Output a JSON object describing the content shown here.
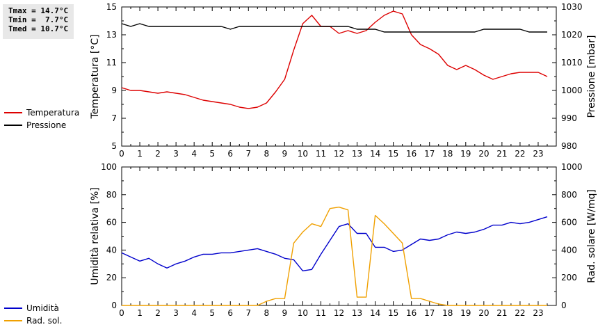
{
  "stats": [
    "Tmax = 14.7°C",
    "Tmin =  7.7°C",
    "Tmed = 10.7°C"
  ],
  "chart_data": [
    {
      "type": "line",
      "x": [
        0,
        0.5,
        1,
        1.5,
        2,
        2.5,
        3,
        3.5,
        4,
        4.5,
        5,
        5.5,
        6,
        6.5,
        7,
        7.5,
        8,
        8.5,
        9,
        9.5,
        10,
        10.5,
        11,
        11.5,
        12,
        12.5,
        13,
        13.5,
        14,
        14.5,
        15,
        15.5,
        16,
        16.5,
        17,
        17.5,
        18,
        18.5,
        19,
        19.5,
        20,
        20.5,
        21,
        21.5,
        22,
        22.5,
        23,
        23.5
      ],
      "xlim": [
        0,
        24
      ],
      "xticks": [
        "0",
        "1",
        "2",
        "3",
        "4",
        "5",
        "6",
        "7",
        "8",
        "9",
        "10",
        "11",
        "12",
        "13",
        "14",
        "15",
        "16",
        "17",
        "18",
        "19",
        "20",
        "21",
        "22",
        "23"
      ],
      "ylabel": "Temperatura [°C]",
      "ylim": [
        5,
        15
      ],
      "yticks": [
        "5",
        "7",
        "9",
        "11",
        "13",
        "15"
      ],
      "y2label": "Pressione [mbar]",
      "y2lim": [
        980,
        1030
      ],
      "y2ticks": [
        "980",
        "990",
        "1000",
        "1010",
        "1020",
        "1030"
      ],
      "series": [
        {
          "name": "Temperatura",
          "axis": "left",
          "color": "#dd0000",
          "values": [
            9.2,
            9.0,
            9.0,
            8.9,
            8.8,
            8.9,
            8.8,
            8.7,
            8.5,
            8.3,
            8.2,
            8.1,
            8.0,
            7.8,
            7.7,
            7.8,
            8.1,
            8.9,
            9.8,
            11.9,
            13.8,
            14.4,
            13.6,
            13.6,
            13.1,
            13.3,
            13.1,
            13.3,
            13.9,
            14.4,
            14.7,
            14.5,
            13.0,
            12.3,
            12.0,
            11.6,
            10.8,
            10.5,
            10.8,
            10.5,
            10.1,
            9.8,
            10.0,
            10.2,
            10.3,
            10.3,
            10.3,
            10.0
          ]
        },
        {
          "name": "Pressione",
          "axis": "right",
          "color": "#000000",
          "values": [
            1024,
            1023,
            1024,
            1023,
            1023,
            1023,
            1023,
            1023,
            1023,
            1023,
            1023,
            1023,
            1022,
            1023,
            1023,
            1023,
            1023,
            1023,
            1023,
            1023,
            1023,
            1023,
            1023,
            1023,
            1023,
            1023,
            1022,
            1022,
            1022,
            1021,
            1021,
            1021,
            1021,
            1021,
            1021,
            1021,
            1021,
            1021,
            1021,
            1021,
            1022,
            1022,
            1022,
            1022,
            1022,
            1021,
            1021,
            1021
          ]
        }
      ]
    },
    {
      "type": "line",
      "x": [
        0,
        0.5,
        1,
        1.5,
        2,
        2.5,
        3,
        3.5,
        4,
        4.5,
        5,
        5.5,
        6,
        6.5,
        7,
        7.5,
        8,
        8.5,
        9,
        9.5,
        10,
        10.5,
        11,
        11.5,
        12,
        12.5,
        13,
        13.5,
        14,
        14.5,
        15,
        15.5,
        16,
        16.5,
        17,
        17.5,
        18,
        18.5,
        19,
        19.5,
        20,
        20.5,
        21,
        21.5,
        22,
        22.5,
        23,
        23.5
      ],
      "xlim": [
        0,
        24
      ],
      "xticks": [
        "0",
        "1",
        "2",
        "3",
        "4",
        "5",
        "6",
        "7",
        "8",
        "9",
        "10",
        "11",
        "12",
        "13",
        "14",
        "15",
        "16",
        "17",
        "18",
        "19",
        "20",
        "21",
        "22",
        "23"
      ],
      "ylabel": "Umidità relativa [%]",
      "ylim": [
        0,
        100
      ],
      "yticks": [
        "0",
        "20",
        "40",
        "60",
        "80",
        "100"
      ],
      "y2label": "Rad. solare [W/mq]",
      "y2lim": [
        0,
        1000
      ],
      "y2ticks": [
        "0",
        "200",
        "400",
        "600",
        "800",
        "1000"
      ],
      "series": [
        {
          "name": "Umidità",
          "axis": "left",
          "color": "#0000cc",
          "values": [
            38,
            35,
            32,
            34,
            30,
            27,
            30,
            32,
            35,
            37,
            37,
            38,
            38,
            39,
            40,
            41,
            39,
            37,
            34,
            33,
            25,
            26,
            37,
            47,
            57,
            59,
            52,
            52,
            42,
            42,
            39,
            40,
            44,
            48,
            47,
            48,
            51,
            53,
            52,
            53,
            55,
            58,
            58,
            60,
            59,
            60,
            62,
            64
          ]
        },
        {
          "name": "Rad. sol.",
          "axis": "right",
          "color": "#f0a000",
          "values": [
            0,
            0,
            0,
            0,
            0,
            0,
            0,
            0,
            0,
            0,
            0,
            0,
            0,
            0,
            0,
            0,
            30,
            50,
            50,
            450,
            530,
            590,
            570,
            700,
            710,
            690,
            60,
            60,
            650,
            590,
            520,
            450,
            50,
            50,
            30,
            10,
            0,
            0,
            0,
            0,
            0,
            0,
            0,
            0,
            0,
            0,
            0,
            0
          ]
        }
      ]
    }
  ]
}
